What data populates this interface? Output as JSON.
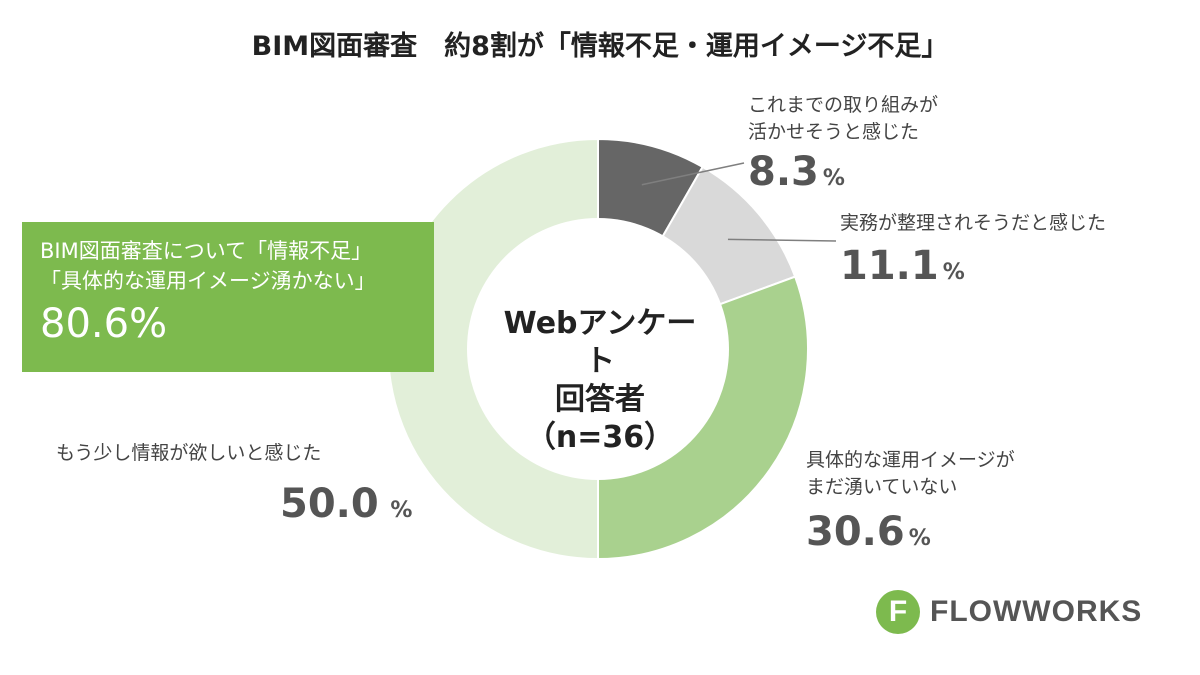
{
  "title": "BIM図面審査　約8割が「情報不足・運用イメージ不足」",
  "center_label": {
    "line1": "Webアンケート",
    "line2": "回答者",
    "line3": "（n=36）"
  },
  "callout": {
    "line1": "BIM図面審査について「情報不足」",
    "line2": "「具体的な運用イメージ湧かない」",
    "value": "80.6%"
  },
  "segment_labels": [
    {
      "text_lines": [
        "これまでの取り組みが",
        "活かせそうと感じた"
      ],
      "value": "8.3",
      "unit": "%"
    },
    {
      "text_lines": [
        "実務が整理されそうだと感じた"
      ],
      "value": "11.1",
      "unit": "%"
    },
    {
      "text_lines": [
        "具体的な運用イメージが",
        "まだ湧いていない"
      ],
      "value": "30.6",
      "unit": "%"
    },
    {
      "text_lines": [
        "もう少し情報が欲しいと感じた"
      ],
      "value": "50.0",
      "unit": " %"
    }
  ],
  "logo": {
    "mark": "F",
    "text": "FLOWWORKS",
    "icon": "flowworks-logo-icon"
  },
  "colors": {
    "dark_gray": "#666666",
    "light_gray": "#d9d9d9",
    "mid_green": "#a9d18e",
    "light_green": "#e2efd9",
    "callout_green": "#7dba4e",
    "leader_line": "#7f7f7f"
  },
  "chart_data": {
    "type": "pie",
    "variant": "donut",
    "title": "BIM図面審査　約8割が「情報不足・運用イメージ不足」",
    "categories": [
      "これまでの取り組みが活かせそうと感じた",
      "実務が整理されそうだと感じた",
      "具体的な運用イメージがまだ湧いていない",
      "もう少し情報が欲しいと感じた"
    ],
    "values": [
      8.3,
      11.1,
      30.6,
      50.0
    ],
    "colors": [
      "#666666",
      "#d9d9d9",
      "#a9d18e",
      "#e2efd9"
    ],
    "start": "12 o'clock, clockwise",
    "legend": "none"
  }
}
